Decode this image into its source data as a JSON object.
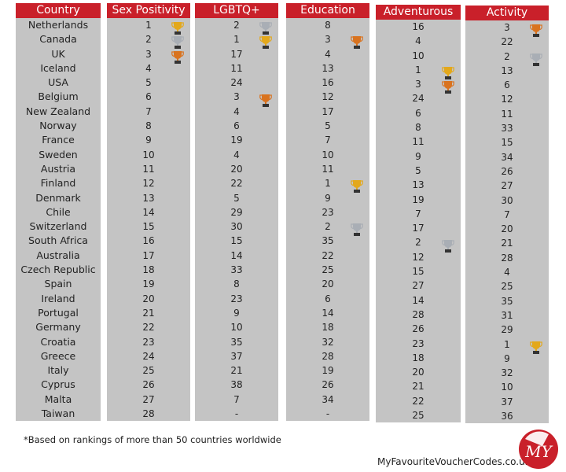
{
  "headers": [
    "Country",
    "Sex Positivity",
    "LGBTQ+",
    "Education",
    "Adventurous",
    "Activity"
  ],
  "rows": [
    {
      "country": "Netherlands",
      "values": [
        "1",
        "2",
        "8",
        "16",
        "3"
      ]
    },
    {
      "country": "Canada",
      "values": [
        "2",
        "1",
        "3",
        "4",
        "22"
      ]
    },
    {
      "country": "UK",
      "values": [
        "3",
        "17",
        "4",
        "10",
        "2"
      ]
    },
    {
      "country": "Iceland",
      "values": [
        "4",
        "11",
        "13",
        "1",
        "13"
      ]
    },
    {
      "country": "USA",
      "values": [
        "5",
        "24",
        "16",
        "3",
        "6"
      ]
    },
    {
      "country": "Belgium",
      "values": [
        "6",
        "3",
        "12",
        "24",
        "12"
      ]
    },
    {
      "country": "New Zealand",
      "values": [
        "7",
        "4",
        "17",
        "6",
        "11"
      ]
    },
    {
      "country": "Norway",
      "values": [
        "8",
        "6",
        "5",
        "8",
        "33"
      ]
    },
    {
      "country": "France",
      "values": [
        "9",
        "19",
        "7",
        "11",
        "15"
      ]
    },
    {
      "country": "Sweden",
      "values": [
        "10",
        "4",
        "10",
        "9",
        "34"
      ]
    },
    {
      "country": "Austria",
      "values": [
        "11",
        "20",
        "11",
        "5",
        "26"
      ]
    },
    {
      "country": "Finland",
      "values": [
        "12",
        "22",
        "1",
        "13",
        "27"
      ]
    },
    {
      "country": "Denmark",
      "values": [
        "13",
        "5",
        "9",
        "19",
        "30"
      ]
    },
    {
      "country": "Chile",
      "values": [
        "14",
        "29",
        "23",
        "7",
        "7"
      ]
    },
    {
      "country": "Switzerland",
      "values": [
        "15",
        "30",
        "2",
        "17",
        "20"
      ]
    },
    {
      "country": "South Africa",
      "values": [
        "16",
        "15",
        "35",
        "2",
        "21"
      ]
    },
    {
      "country": "Australia",
      "values": [
        "17",
        "14",
        "22",
        "12",
        "28"
      ]
    },
    {
      "country": "Czech Republic",
      "values": [
        "18",
        "33",
        "25",
        "15",
        "4"
      ]
    },
    {
      "country": "Spain",
      "values": [
        "19",
        "8",
        "20",
        "27",
        "25"
      ]
    },
    {
      "country": "Ireland",
      "values": [
        "20",
        "23",
        "6",
        "14",
        "35"
      ]
    },
    {
      "country": "Portugal",
      "values": [
        "21",
        "9",
        "14",
        "28",
        "31"
      ]
    },
    {
      "country": "Germany",
      "values": [
        "22",
        "10",
        "18",
        "26",
        "29"
      ]
    },
    {
      "country": "Croatia",
      "values": [
        "23",
        "35",
        "32",
        "23",
        "1"
      ]
    },
    {
      "country": "Greece",
      "values": [
        "24",
        "37",
        "28",
        "18",
        "9"
      ]
    },
    {
      "country": "Italy",
      "values": [
        "25",
        "21",
        "19",
        "20",
        "32"
      ]
    },
    {
      "country": "Cyprus",
      "values": [
        "26",
        "38",
        "26",
        "21",
        "10"
      ]
    },
    {
      "country": "Malta",
      "values": [
        "27",
        "7",
        "34",
        "22",
        "37"
      ]
    },
    {
      "country": "Taiwan",
      "values": [
        "28",
        "-",
        "-",
        "25",
        "36"
      ]
    }
  ],
  "trophies": [
    {
      "col": 1,
      "row": 0,
      "medal": "gold"
    },
    {
      "col": 1,
      "row": 1,
      "medal": "silver"
    },
    {
      "col": 1,
      "row": 2,
      "medal": "bronze"
    },
    {
      "col": 2,
      "row": 0,
      "medal": "silver"
    },
    {
      "col": 2,
      "row": 1,
      "medal": "gold"
    },
    {
      "col": 2,
      "row": 5,
      "medal": "bronze"
    },
    {
      "col": 3,
      "row": 1,
      "medal": "bronze"
    },
    {
      "col": 3,
      "row": 11,
      "medal": "gold"
    },
    {
      "col": 3,
      "row": 14,
      "medal": "silver"
    },
    {
      "col": 4,
      "row": 3,
      "medal": "gold"
    },
    {
      "col": 4,
      "row": 4,
      "medal": "bronze"
    },
    {
      "col": 4,
      "row": 15,
      "medal": "silver"
    },
    {
      "col": 5,
      "row": 0,
      "medal": "bronze"
    },
    {
      "col": 5,
      "row": 2,
      "medal": "silver"
    },
    {
      "col": 5,
      "row": 22,
      "medal": "gold"
    }
  ],
  "medal_colors": {
    "gold": "#e3a81b",
    "silver": "#a9aeb5",
    "bronze": "#d9731f"
  },
  "colors": {
    "header": "#c9202a",
    "cell_background": "#c4c4c4",
    "text": "#222222"
  },
  "footnote": "*Based on rankings of more than 50 countries worldwide",
  "website": "MyFavouriteVoucherCodes.co.uk",
  "logo_text": "MY"
}
